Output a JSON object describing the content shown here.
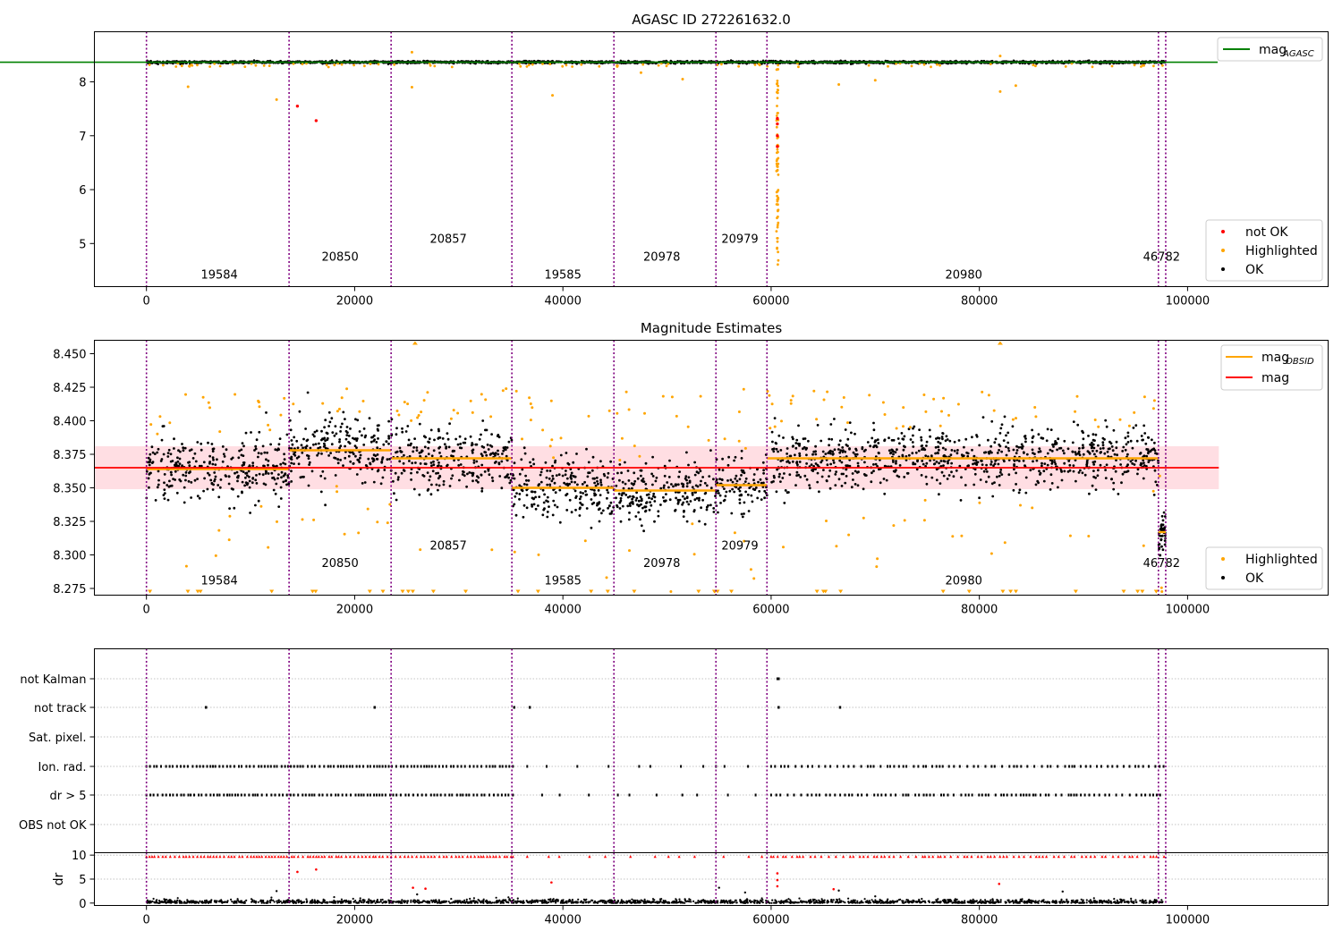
{
  "chart_data": [
    {
      "type": "scatter",
      "title": "AGASC ID 272261632.0",
      "xlim": [
        -5000,
        113500
      ],
      "ylim": [
        4.2,
        8.93
      ],
      "x_ticks": [
        0,
        20000,
        40000,
        60000,
        80000,
        100000
      ],
      "y_ticks": [
        5,
        6,
        7,
        8
      ],
      "obsid_boundaries": [
        0,
        13700,
        23500,
        35100,
        44900,
        54700,
        59600,
        97200,
        97900
      ],
      "obsid_labels": [
        {
          "label": "19584",
          "x": 7000,
          "y": 4.35
        },
        {
          "label": "20850",
          "x": 18600,
          "y": 4.68
        },
        {
          "label": "20857",
          "x": 29000,
          "y": 5.01
        },
        {
          "label": "19585",
          "x": 40000,
          "y": 4.35
        },
        {
          "label": "20978",
          "x": 49500,
          "y": 4.68
        },
        {
          "label": "20979",
          "x": 57000,
          "y": 5.01
        },
        {
          "label": "20980",
          "x": 78500,
          "y": 4.35
        },
        {
          "label": "46782",
          "x": 97500,
          "y": 4.68
        }
      ],
      "series": [
        {
          "name": "mag_AGASC",
          "type": "line",
          "color": "#008000",
          "y": 8.365
        },
        {
          "name": "not OK",
          "color": "#ff0000",
          "points": [
            [
              14500,
              7.55
            ],
            [
              16300,
              7.28
            ],
            [
              60600,
              7.32
            ],
            [
              60600,
              7.22
            ],
            [
              60600,
              7.0
            ],
            [
              60600,
              6.8
            ]
          ]
        },
        {
          "name": "Highlighted",
          "color": "#ffa500",
          "points": [
            [
              4000,
              7.91
            ],
            [
              12500,
              7.67
            ],
            [
              25500,
              8.55
            ],
            [
              25500,
              7.9
            ],
            [
              39000,
              7.75
            ],
            [
              47500,
              8.17
            ],
            [
              51500,
              8.05
            ],
            [
              66500,
              7.95
            ],
            [
              70000,
              8.03
            ],
            [
              82000,
              7.82
            ],
            [
              82000,
              8.48
            ],
            [
              83500,
              7.93
            ]
          ]
        },
        {
          "name": "OK",
          "color": "#000000",
          "band": {
            "x_start": 0,
            "x_end": 97900,
            "y_center": 8.365,
            "spread": 0.03
          }
        }
      ],
      "legends": [
        {
          "position": "top-right",
          "entries": [
            {
              "label_main": "mag",
              "label_sub": "AGASC",
              "color": "#008000",
              "kind": "line"
            }
          ]
        },
        {
          "position": "bottom-right",
          "entries": [
            {
              "label": "not OK",
              "color": "#ff0000",
              "kind": "marker"
            },
            {
              "label": "Highlighted",
              "color": "#ffa500",
              "kind": "marker"
            },
            {
              "label": "OK",
              "color": "#000000",
              "kind": "marker"
            }
          ]
        }
      ]
    },
    {
      "type": "scatter",
      "title": "Magnitude Estimates",
      "xlim": [
        -5000,
        113500
      ],
      "ylim": [
        8.27,
        8.46
      ],
      "x_ticks": [
        0,
        20000,
        40000,
        60000,
        80000,
        100000
      ],
      "y_ticks": [
        8.275,
        8.3,
        8.325,
        8.35,
        8.375,
        8.4,
        8.425,
        8.45
      ],
      "y_tick_labels": [
        "8.275",
        "8.300",
        "8.325",
        "8.350",
        "8.375",
        "8.400",
        "8.425",
        "8.450"
      ],
      "mag_band": {
        "x_start": -5000,
        "x_end": 103000,
        "y_low": 8.349,
        "y_high": 8.381,
        "color": "#ffb6c1"
      },
      "obsid_boundaries": [
        0,
        13700,
        23500,
        35100,
        44900,
        54700,
        59600,
        97200,
        97900
      ],
      "obsid_segments": [
        {
          "obsid": "19584",
          "x_start": 0,
          "x_end": 13700,
          "mag": 8.364,
          "spread": 0.011,
          "hi": 0.4
        },
        {
          "obsid": "20850",
          "x_start": 13700,
          "x_end": 23500,
          "mag": 8.378,
          "spread": 0.012,
          "hi": 0.4
        },
        {
          "obsid": "20857",
          "x_start": 23500,
          "x_end": 35100,
          "mag": 8.372,
          "spread": 0.012,
          "hi": 0.408
        },
        {
          "obsid": "19585",
          "x_start": 35100,
          "x_end": 44900,
          "mag": 8.35,
          "spread": 0.011,
          "hi": 0.38
        },
        {
          "obsid": "20978",
          "x_start": 44900,
          "x_end": 54700,
          "mag": 8.348,
          "spread": 0.011,
          "hi": 0.375
        },
        {
          "obsid": "20979",
          "x_start": 54700,
          "x_end": 59600,
          "mag": 8.352,
          "spread": 0.01,
          "hi": 0.38
        },
        {
          "obsid": "20980",
          "x_start": 59600,
          "x_end": 97200,
          "mag": 8.372,
          "spread": 0.011,
          "hi": 0.415
        },
        {
          "obsid": "46782",
          "x_start": 97200,
          "x_end": 97900,
          "mag": 8.317,
          "spread": 0.008,
          "hi": 0.33
        }
      ],
      "obsid_labels": [
        {
          "label": "19584",
          "x": 7000,
          "y": 8.278
        },
        {
          "label": "20850",
          "x": 18600,
          "y": 8.291
        },
        {
          "label": "20857",
          "x": 29000,
          "y": 8.304
        },
        {
          "label": "19585",
          "x": 40000,
          "y": 8.278
        },
        {
          "label": "20978",
          "x": 49500,
          "y": 8.291
        },
        {
          "label": "20979",
          "x": 57000,
          "y": 8.304
        },
        {
          "label": "20980",
          "x": 78500,
          "y": 8.278
        },
        {
          "label": "46782",
          "x": 97500,
          "y": 8.291
        }
      ],
      "series": [
        {
          "name": "mag_OBSID",
          "type": "step",
          "color": "#ffa500"
        },
        {
          "name": "mag",
          "type": "line",
          "color": "#ff0000",
          "y": 8.365,
          "x_start": -5000,
          "x_end": 103000
        },
        {
          "name": "Highlighted",
          "color": "#ffa500",
          "marker": "dot"
        },
        {
          "name": "OK",
          "color": "#000000",
          "marker": "dot"
        }
      ],
      "legends": [
        {
          "position": "top-right",
          "entries": [
            {
              "label_main": "mag",
              "label_sub": "OBSID",
              "color": "#ffa500",
              "kind": "line"
            },
            {
              "label": "mag",
              "color": "#ff0000",
              "kind": "line"
            }
          ]
        },
        {
          "position": "bottom-right",
          "entries": [
            {
              "label": "Highlighted",
              "color": "#ffa500",
              "kind": "marker"
            },
            {
              "label": "OK",
              "color": "#000000",
              "kind": "marker"
            }
          ]
        }
      ]
    },
    {
      "type": "scatter",
      "xlim": [
        -5000,
        113500
      ],
      "categories": [
        "not Kalman",
        "not track",
        "Sat. pixel.",
        "Ion. rad.",
        "dr > 5",
        "OBS not OK"
      ],
      "flag_marks": [
        {
          "flag": "not Kalman",
          "x": [
            60600,
            60700
          ]
        },
        {
          "flag": "not track",
          "x": [
            5700,
            21900,
            35300,
            36800,
            60700,
            66600
          ]
        },
        {
          "flag": "Sat. pixel.",
          "x": []
        },
        {
          "flag": "Ion. rad.",
          "pattern": "same as dr > 5"
        },
        {
          "flag": "dr > 5",
          "pattern": "dense 0-35100, sparse 35100-60000, medium 60000-97900"
        },
        {
          "flag": "OBS not OK",
          "x": []
        }
      ],
      "obsid_boundaries": [
        0,
        13700,
        23500,
        35100,
        44900,
        54700,
        59600,
        97200,
        97900
      ]
    },
    {
      "type": "scatter",
      "ylabel": "dr",
      "xlim": [
        -5000,
        113500
      ],
      "ylim": [
        -0.5,
        10.5
      ],
      "x_ticks": [
        0,
        20000,
        40000,
        60000,
        80000,
        100000
      ],
      "y_ticks": [
        0,
        5,
        10
      ],
      "series": [
        {
          "name": "dr > 5 (clipped)",
          "color": "#ff0000",
          "marker": "triangle",
          "y": 10
        },
        {
          "name": "dr",
          "color": "#000000",
          "marker": "dot",
          "y_range": [
            0,
            1
          ]
        }
      ],
      "red_points": [
        [
          14500,
          6.5
        ],
        [
          16300,
          7.0
        ],
        [
          25600,
          3.2
        ],
        [
          26800,
          3.0
        ],
        [
          38900,
          4.3
        ],
        [
          60600,
          6.2
        ],
        [
          60600,
          4.8
        ],
        [
          60600,
          3.5
        ],
        [
          66000,
          2.9
        ],
        [
          81900,
          4.0
        ]
      ],
      "black_outliers": [
        [
          12500,
          2.5
        ],
        [
          26000,
          1.8
        ],
        [
          55000,
          3.2
        ],
        [
          57500,
          2.2
        ],
        [
          66500,
          2.6
        ],
        [
          70000,
          1.4
        ],
        [
          88000,
          2.4
        ]
      ],
      "obsid_boundaries": [
        0,
        13700,
        23500,
        35100,
        44900,
        54700,
        59600,
        97200,
        97900
      ]
    }
  ]
}
